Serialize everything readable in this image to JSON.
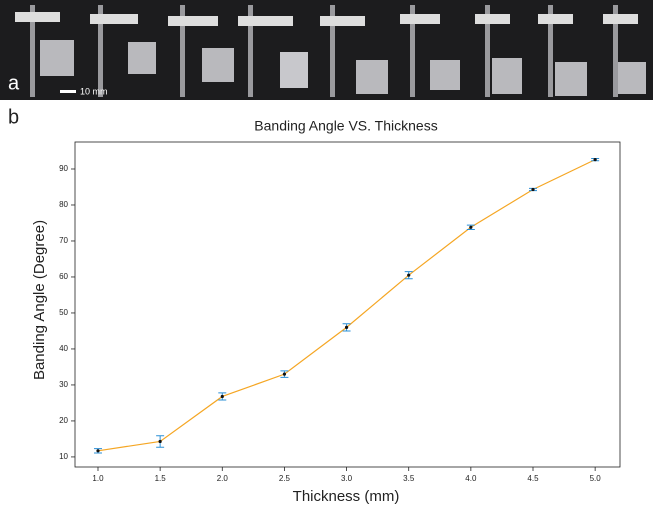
{
  "panels": {
    "a": {
      "label": "a",
      "scale_bar": "10 mm"
    },
    "b": {
      "label": "b"
    }
  },
  "chart_data": {
    "type": "line",
    "title": "Banding Angle VS. Thickness",
    "x_label": "Thickness (mm)",
    "y_label": "Banding Angle (Degree)",
    "x": [
      1.0,
      1.5,
      2.0,
      2.5,
      3.0,
      3.5,
      4.0,
      4.5,
      5.0
    ],
    "series": [
      {
        "color": "#f5a623",
        "marker_color": "#111111",
        "error_color": "#2a8fd6",
        "values": [
          11.7,
          14.3,
          26.8,
          33,
          46,
          60.5,
          73.8,
          84.3,
          92.6
        ],
        "errors": [
          0.6,
          1.6,
          1,
          0.9,
          1,
          1,
          0.6,
          0.3,
          0.3
        ]
      }
    ],
    "xlim": [
      0.815,
      5.2
    ],
    "ylim": [
      7.2,
      97.5
    ],
    "xticks": [
      {
        "value": 1,
        "label": "1.0"
      },
      {
        "value": 1.5,
        "label": "1.5"
      },
      {
        "value": 2,
        "label": "2.0"
      },
      {
        "value": 2.5,
        "label": "2.5"
      },
      {
        "value": 3,
        "label": "3.0"
      },
      {
        "value": 3.5,
        "label": "3.5"
      },
      {
        "value": 4,
        "label": "4.0"
      },
      {
        "value": 4.5,
        "label": "4.5"
      },
      {
        "value": 5,
        "label": "5.0"
      }
    ],
    "yticks": [
      10,
      20,
      30,
      40,
      50,
      60,
      70,
      80,
      90
    ],
    "grid": false
  }
}
